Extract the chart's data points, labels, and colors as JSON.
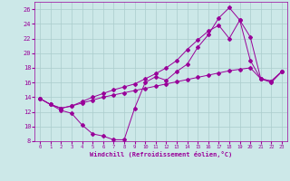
{
  "xlabel": "Windchill (Refroidissement éolien,°C)",
  "bg_color": "#cce8e8",
  "line_color": "#990099",
  "grid_color": "#aacccc",
  "xlim": [
    -0.5,
    23.5
  ],
  "ylim": [
    8,
    27
  ],
  "xticks": [
    0,
    1,
    2,
    3,
    4,
    5,
    6,
    7,
    8,
    9,
    10,
    11,
    12,
    13,
    14,
    15,
    16,
    17,
    18,
    19,
    20,
    21,
    22,
    23
  ],
  "yticks": [
    8,
    10,
    12,
    14,
    16,
    18,
    20,
    22,
    24,
    26
  ],
  "line1_x": [
    0,
    1,
    2,
    3,
    4,
    5,
    6,
    7,
    8,
    9,
    10,
    11,
    12,
    13,
    14,
    15,
    16,
    17,
    18,
    19,
    20,
    21,
    22,
    23
  ],
  "line1_y": [
    13.8,
    13.0,
    12.2,
    11.8,
    10.2,
    9.0,
    8.7,
    8.2,
    8.2,
    12.5,
    16.0,
    16.8,
    16.3,
    17.5,
    18.5,
    20.8,
    22.5,
    24.8,
    26.2,
    24.5,
    19.0,
    16.5,
    16.0,
    17.5
  ],
  "line2_x": [
    0,
    1,
    2,
    3,
    4,
    5,
    6,
    7,
    8,
    9,
    10,
    11,
    12,
    13,
    14,
    15,
    16,
    17,
    18,
    19,
    20,
    21,
    22,
    23
  ],
  "line2_y": [
    13.8,
    13.0,
    12.5,
    12.8,
    13.2,
    13.6,
    14.0,
    14.3,
    14.6,
    14.9,
    15.2,
    15.5,
    15.8,
    16.1,
    16.4,
    16.7,
    17.0,
    17.3,
    17.6,
    17.8,
    18.0,
    16.5,
    16.2,
    17.5
  ],
  "line3_x": [
    0,
    1,
    2,
    3,
    4,
    5,
    6,
    7,
    8,
    9,
    10,
    11,
    12,
    13,
    14,
    15,
    16,
    17,
    18,
    19,
    20,
    21,
    22,
    23
  ],
  "line3_y": [
    13.8,
    13.0,
    12.5,
    12.8,
    13.4,
    14.0,
    14.5,
    15.0,
    15.4,
    15.8,
    16.5,
    17.2,
    18.0,
    19.0,
    20.5,
    21.8,
    23.0,
    23.8,
    22.0,
    24.5,
    22.2,
    16.5,
    16.2,
    17.5
  ]
}
